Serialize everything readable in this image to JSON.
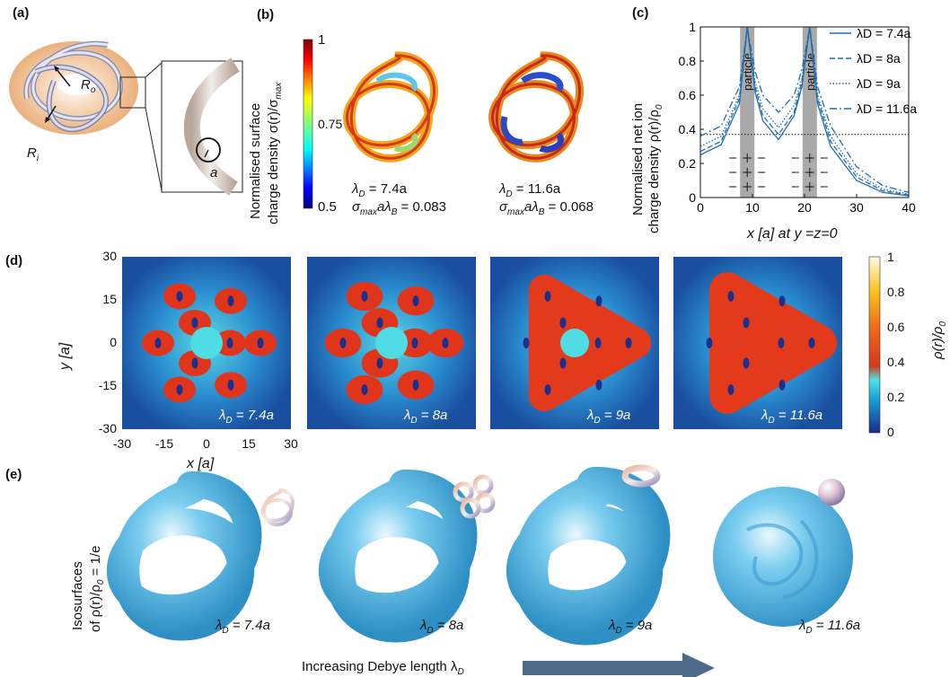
{
  "panel_labels": {
    "a": "(a)",
    "b": "(b)",
    "c": "(c)",
    "d": "(d)",
    "e": "(e)"
  },
  "panel_a": {
    "outer_radius": "R",
    "outer_sub": "o",
    "inner_radius": "R",
    "inner_sub": "i",
    "tube_radius": "a"
  },
  "panel_b": {
    "colorbar_title_1": "Normalised surface",
    "colorbar_title_2": "charge density σ(r)/σ",
    "colorbar_title_sub": "max",
    "colorbar_ticks": [
      "1",
      "0.75",
      "0.5"
    ],
    "captions": [
      {
        "lambda": "λ",
        "lambda_sub": "D",
        "lambda_val": " = 7.4a",
        "sigma": "σ",
        "sigma_sub": "max",
        "sigma_rest": "aλ",
        "sigma_rest_sub": "B",
        "sigma_val": " = 0.083"
      },
      {
        "lambda": "λ",
        "lambda_sub": "D",
        "lambda_val": " = 11.6a",
        "sigma": "σ",
        "sigma_sub": "max",
        "sigma_rest": "aλ",
        "sigma_rest_sub": "B",
        "sigma_val": " = 0.068"
      }
    ]
  },
  "panel_c": {
    "ylabel_1": "Normalised net ion",
    "ylabel_2": "charge density ρ(r)/ρ",
    "ylabel_sub": "0",
    "xlabel": "x [a] at y =z=0",
    "xticks": [
      "0",
      "10",
      "20",
      "30",
      "40"
    ],
    "yticks": [
      "0",
      "0.2",
      "0.4",
      "0.6",
      "0.8",
      "1"
    ],
    "particle_label": "particle",
    "chart_data": {
      "type": "line",
      "xlabel": "x [a] at y =z=0",
      "ylabel": "Normalised net ion charge density ρ(r)/ρ0",
      "xlim": [
        0,
        40
      ],
      "ylim": [
        0,
        1
      ],
      "reference_line_y": 0.37,
      "particles_x": [
        9,
        21
      ],
      "series": [
        {
          "name": "λD = 7.4a",
          "x": [
            0,
            4,
            7.5,
            9,
            10.5,
            12,
            15,
            18,
            19.5,
            21,
            22.5,
            25,
            30,
            35,
            40
          ],
          "y": [
            0.25,
            0.31,
            0.55,
            1.0,
            0.62,
            0.45,
            0.34,
            0.48,
            0.65,
            1.0,
            0.55,
            0.3,
            0.1,
            0.03,
            0.01
          ]
        },
        {
          "name": "λD = 8a",
          "x": [
            0,
            4,
            7.5,
            9,
            10.5,
            12,
            15,
            18,
            19.5,
            21,
            22.5,
            25,
            30,
            35,
            40
          ],
          "y": [
            0.27,
            0.33,
            0.58,
            1.0,
            0.65,
            0.48,
            0.37,
            0.5,
            0.68,
            1.0,
            0.58,
            0.33,
            0.12,
            0.04,
            0.015
          ]
        },
        {
          "name": "λD = 9a",
          "x": [
            0,
            4,
            7.5,
            9,
            10.5,
            12,
            15,
            18,
            19.5,
            21,
            22.5,
            25,
            30,
            35,
            40
          ],
          "y": [
            0.3,
            0.36,
            0.6,
            1.0,
            0.68,
            0.52,
            0.41,
            0.54,
            0.7,
            1.0,
            0.6,
            0.36,
            0.14,
            0.05,
            0.02
          ]
        },
        {
          "name": "λD = 11.6a",
          "x": [
            0,
            4,
            7.5,
            9,
            10.5,
            12,
            15,
            18,
            19.5,
            21,
            22.5,
            25,
            30,
            35,
            40
          ],
          "y": [
            0.36,
            0.42,
            0.65,
            1.0,
            0.74,
            0.6,
            0.5,
            0.6,
            0.75,
            1.0,
            0.65,
            0.42,
            0.18,
            0.07,
            0.03
          ]
        }
      ],
      "legend_position": "top-right"
    }
  },
  "panel_d": {
    "ylabel": "y [a]",
    "xlabel": "x [a]",
    "ticks": [
      "30",
      "15",
      "0",
      "-15",
      "-30"
    ],
    "xticks": [
      "-30",
      "-15",
      "0",
      "15",
      "30"
    ],
    "colorbar_title": "ρ(r)/ρ",
    "colorbar_title_sub": "0",
    "colorbar_ticks": [
      "1",
      "0.8",
      "0.6",
      "0.4",
      "0.2",
      "0"
    ],
    "maps": [
      {
        "lambda": "λ",
        "lambda_sub": "D",
        "lambda_val": " = 7.4a"
      },
      {
        "lambda": "λ",
        "lambda_sub": "D",
        "lambda_val": " = 8a"
      },
      {
        "lambda": "λ",
        "lambda_sub": "D",
        "lambda_val": " = 9a"
      },
      {
        "lambda": "λ",
        "lambda_sub": "D",
        "lambda_val": " = 11.6a"
      }
    ]
  },
  "panel_e": {
    "ylabel_1": "Isosurfaces",
    "ylabel_2": "of ρ(r)/ρ",
    "ylabel_sub": "0",
    "ylabel_3": " = 1/e",
    "labels": [
      {
        "lambda": "λ",
        "lambda_sub": "D",
        "lambda_val": " = 7.4a"
      },
      {
        "lambda": "λ",
        "lambda_sub": "D",
        "lambda_val": " = 8a"
      },
      {
        "lambda": "λ",
        "lambda_sub": "D",
        "lambda_val": " = 9a"
      },
      {
        "lambda": "λ",
        "lambda_sub": "D",
        "lambda_val": " = 11.6a"
      }
    ],
    "arrow_text": "Increasing Debye length λ",
    "arrow_sub": "D"
  },
  "colors": {
    "blue_line": "#1f6eb0",
    "particle_gray": "#a9a9a9",
    "arrow": "#4d6a89",
    "iso_blue": "#6ec5ea"
  }
}
